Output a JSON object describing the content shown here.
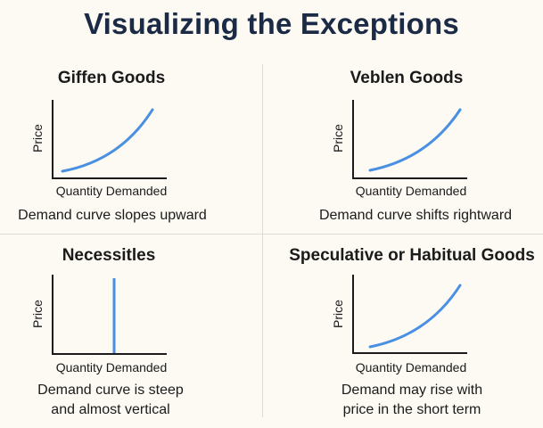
{
  "title": "Visualizing the Exceptions",
  "colors": {
    "curve": "#4a90e2",
    "axis": "#1b1b1b",
    "title": "#1c2b45",
    "background": "#fcfaf3"
  },
  "panels": [
    {
      "title": "Giffen Goods",
      "y_label": "Price",
      "x_label": "Quantity Demanded",
      "caption": [
        "Demand curve slopes upward"
      ],
      "curve": "upward-convex"
    },
    {
      "title": "Veblen Goods",
      "y_label": "Price",
      "x_label": "Quantity Demanded",
      "caption": [
        "Demand curve shifts rightward"
      ],
      "curve": "upward-convex"
    },
    {
      "title": "Necessitles",
      "y_label": "Price",
      "x_label": "Quantity Demanded",
      "caption": [
        "Demand curve is steep",
        "and almost vertical"
      ],
      "curve": "vertical"
    },
    {
      "title": "Speculative or Habitual Goods",
      "y_label": "Price",
      "x_label": "Quantity Demanded",
      "caption": [
        "Demand may rise with",
        "price in the short term"
      ],
      "curve": "upward-convex"
    }
  ]
}
